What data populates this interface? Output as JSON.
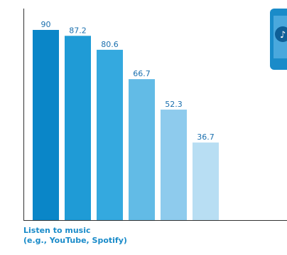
{
  "chart_data": {
    "type": "bar",
    "categories": [
      "",
      "",
      "",
      "",
      "",
      ""
    ],
    "values": [
      90,
      87.2,
      80.6,
      66.7,
      52.3,
      36.7
    ],
    "data_labels": [
      "90",
      "87.2",
      "80.6",
      "66.7",
      "52.3",
      "36.7"
    ],
    "title_lines": [
      "Listen to music",
      "(e.g., YouTube, Spotify)"
    ],
    "xlabel": "",
    "ylabel": "",
    "ylim": [
      0,
      100
    ],
    "grid": false,
    "legend": "none",
    "colors": [
      "#0a86c8",
      "#1f9bd6",
      "#34a9df",
      "#62bbe6",
      "#8ecbed",
      "#b8def3"
    ],
    "label_color": "#1a6fae",
    "axis_color": "#333333",
    "icon": "music-phone-icon",
    "icon_colors": {
      "body": "#1a8bc9",
      "screen": "#4aa8dd",
      "note_bg": "#0e5f97"
    }
  }
}
